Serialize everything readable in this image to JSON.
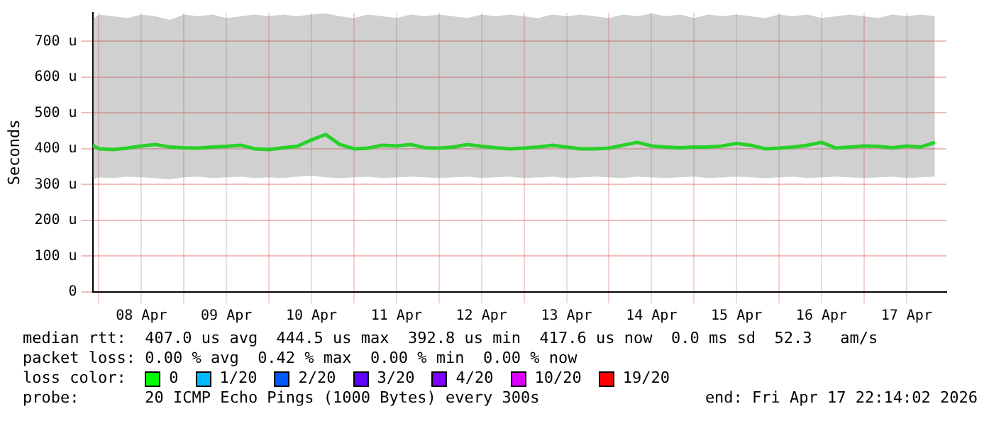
{
  "chart_data": {
    "type": "line",
    "ylabel": "Seconds",
    "legend_title": "loss color:",
    "legend": "bottom",
    "grid": true,
    "marker": "none",
    "x": [
      "2026-04-07T22:14",
      "2026-04-08T00:00",
      "2026-04-08T04:00",
      "2026-04-08T08:00",
      "2026-04-08T12:00",
      "2026-04-08T16:00",
      "2026-04-08T20:00",
      "2026-04-09T00:00",
      "2026-04-09T04:00",
      "2026-04-09T08:00",
      "2026-04-09T12:00",
      "2026-04-09T16:00",
      "2026-04-09T20:00",
      "2026-04-10T00:00",
      "2026-04-10T04:00",
      "2026-04-10T08:00",
      "2026-04-10T12:00",
      "2026-04-10T16:00",
      "2026-04-10T20:00",
      "2026-04-11T00:00",
      "2026-04-11T04:00",
      "2026-04-11T08:00",
      "2026-04-11T12:00",
      "2026-04-11T16:00",
      "2026-04-11T20:00",
      "2026-04-12T00:00",
      "2026-04-12T04:00",
      "2026-04-12T08:00",
      "2026-04-12T12:00",
      "2026-04-12T16:00",
      "2026-04-12T20:00",
      "2026-04-13T00:00",
      "2026-04-13T04:00",
      "2026-04-13T08:00",
      "2026-04-13T12:00",
      "2026-04-13T16:00",
      "2026-04-13T20:00",
      "2026-04-14T00:00",
      "2026-04-14T04:00",
      "2026-04-14T08:00",
      "2026-04-14T12:00",
      "2026-04-14T16:00",
      "2026-04-14T20:00",
      "2026-04-15T00:00",
      "2026-04-15T04:00",
      "2026-04-15T08:00",
      "2026-04-15T12:00",
      "2026-04-15T16:00",
      "2026-04-15T20:00",
      "2026-04-16T00:00",
      "2026-04-16T04:00",
      "2026-04-16T08:00",
      "2026-04-16T12:00",
      "2026-04-16T16:00",
      "2026-04-16T20:00",
      "2026-04-17T00:00",
      "2026-04-17T04:00",
      "2026-04-17T08:00",
      "2026-04-17T12:00",
      "2026-04-17T16:00",
      "2026-04-17T20:00"
    ],
    "xlim": [
      "2026-04-07T22:14",
      "2026-04-17T23:15"
    ],
    "xticks": [
      {
        "value": "2026-04-08T00:00",
        "label": null
      },
      {
        "value": "2026-04-08T12:00",
        "label": "08 Apr"
      },
      {
        "value": "2026-04-09T00:00",
        "label": null
      },
      {
        "value": "2026-04-09T12:00",
        "label": "09 Apr"
      },
      {
        "value": "2026-04-10T00:00",
        "label": null
      },
      {
        "value": "2026-04-10T12:00",
        "label": "10 Apr"
      },
      {
        "value": "2026-04-11T00:00",
        "label": null
      },
      {
        "value": "2026-04-11T12:00",
        "label": "11 Apr"
      },
      {
        "value": "2026-04-12T00:00",
        "label": null
      },
      {
        "value": "2026-04-12T12:00",
        "label": "12 Apr"
      },
      {
        "value": "2026-04-13T00:00",
        "label": null
      },
      {
        "value": "2026-04-13T12:00",
        "label": "13 Apr"
      },
      {
        "value": "2026-04-14T00:00",
        "label": null
      },
      {
        "value": "2026-04-14T12:00",
        "label": "14 Apr"
      },
      {
        "value": "2026-04-15T00:00",
        "label": null
      },
      {
        "value": "2026-04-15T12:00",
        "label": "15 Apr"
      },
      {
        "value": "2026-04-16T00:00",
        "label": null
      },
      {
        "value": "2026-04-16T12:00",
        "label": "16 Apr"
      },
      {
        "value": "2026-04-17T00:00",
        "label": null
      },
      {
        "value": "2026-04-17T12:00",
        "label": "17 Apr"
      }
    ],
    "ylim": [
      0,
      780
    ],
    "yticks": [
      0,
      {
        "value": 100,
        "label": "100 u"
      },
      {
        "value": 200,
        "label": "200 u"
      },
      {
        "value": 300,
        "label": "300 u"
      },
      {
        "value": 400,
        "label": "400 u"
      },
      {
        "value": 500,
        "label": "500 u"
      },
      {
        "value": 600,
        "label": "600 u"
      },
      {
        "value": 700,
        "label": "700 u"
      }
    ],
    "series": [
      {
        "name": "0",
        "color": "#00ff00",
        "values": [
          410,
          400,
          398,
          402,
          408,
          412,
          405,
          403,
          402,
          405,
          407,
          410,
          400,
          398,
          403,
          407,
          425,
          440,
          412,
          400,
          402,
          410,
          408,
          412,
          403,
          402,
          405,
          412,
          407,
          403,
          400,
          402,
          405,
          410,
          405,
          400,
          400,
          402,
          410,
          418,
          408,
          405,
          403,
          405,
          405,
          408,
          415,
          410,
          400,
          402,
          405,
          410,
          418,
          402,
          405,
          408,
          407,
          403,
          408,
          405,
          418
        ],
        "lower": [
          315,
          320,
          318,
          322,
          320,
          318,
          315,
          320,
          322,
          318,
          320,
          322,
          318,
          320,
          318,
          322,
          325,
          320,
          318,
          320,
          322,
          318,
          320,
          322,
          320,
          318,
          320,
          322,
          318,
          320,
          322,
          318,
          320,
          322,
          318,
          320,
          322,
          320,
          318,
          322,
          320,
          318,
          320,
          322,
          318,
          320,
          322,
          320,
          318,
          320,
          322,
          318,
          320,
          322,
          320,
          318,
          320,
          322,
          318,
          320,
          322
        ],
        "upper": [
          760,
          775,
          770,
          765,
          775,
          770,
          760,
          775,
          770,
          775,
          765,
          770,
          775,
          770,
          775,
          770,
          775,
          778,
          770,
          765,
          775,
          770,
          765,
          775,
          770,
          775,
          770,
          765,
          775,
          770,
          775,
          770,
          765,
          775,
          770,
          775,
          770,
          765,
          775,
          770,
          778,
          770,
          775,
          765,
          775,
          770,
          775,
          770,
          765,
          775,
          770,
          775,
          765,
          770,
          775,
          770,
          765,
          775,
          770,
          775,
          770
        ]
      },
      {
        "name": "1/20",
        "color": "#00b8ff",
        "values": [
          null,
          null,
          null,
          null,
          null,
          null,
          null,
          null,
          null,
          null,
          null,
          null,
          null,
          null,
          null,
          null,
          null,
          null,
          null,
          null,
          null,
          null,
          null,
          null,
          null,
          null,
          null,
          null,
          null,
          null,
          null,
          null,
          null,
          null,
          null,
          null,
          null,
          null,
          null,
          null,
          null,
          null,
          null,
          null,
          null,
          null,
          null,
          null,
          null,
          null,
          null,
          null,
          null,
          null,
          null,
          null,
          null,
          null,
          null,
          null,
          null
        ]
      },
      {
        "name": "2/20",
        "color": "#0059ff",
        "values": [
          null,
          null,
          null,
          null,
          null,
          null,
          null,
          null,
          null,
          null,
          null,
          null,
          null,
          null,
          null,
          null,
          null,
          null,
          null,
          null,
          null,
          null,
          null,
          null,
          null,
          null,
          null,
          null,
          null,
          null,
          null,
          null,
          null,
          null,
          null,
          null,
          null,
          null,
          null,
          null,
          null,
          null,
          null,
          null,
          null,
          null,
          null,
          null,
          null,
          null,
          null,
          null,
          null,
          null,
          null,
          null,
          null,
          null,
          null,
          null,
          null
        ]
      },
      {
        "name": "3/20",
        "color": "#5e00ff",
        "values": [
          null,
          null,
          null,
          null,
          null,
          null,
          null,
          null,
          null,
          null,
          null,
          null,
          null,
          null,
          null,
          null,
          null,
          null,
          null,
          null,
          null,
          null,
          null,
          null,
          null,
          null,
          null,
          null,
          null,
          null,
          null,
          null,
          null,
          null,
          null,
          null,
          null,
          null,
          null,
          null,
          null,
          null,
          null,
          null,
          null,
          null,
          null,
          null,
          null,
          null,
          null,
          null,
          null,
          null,
          null,
          null,
          null,
          null,
          null,
          null,
          null
        ]
      },
      {
        "name": "4/20",
        "color": "#7e00ff",
        "values": [
          null,
          null,
          null,
          null,
          null,
          null,
          null,
          null,
          null,
          null,
          null,
          null,
          null,
          null,
          null,
          null,
          null,
          null,
          null,
          null,
          null,
          null,
          null,
          null,
          null,
          null,
          null,
          null,
          null,
          null,
          null,
          null,
          null,
          null,
          null,
          null,
          null,
          null,
          null,
          null,
          null,
          null,
          null,
          null,
          null,
          null,
          null,
          null,
          null,
          null,
          null,
          null,
          null,
          null,
          null,
          null,
          null,
          null,
          null,
          null,
          null
        ]
      },
      {
        "name": "10/20",
        "color": "#dd00ff",
        "values": [
          null,
          null,
          null,
          null,
          null,
          null,
          null,
          null,
          null,
          null,
          null,
          null,
          null,
          null,
          null,
          null,
          null,
          null,
          null,
          null,
          null,
          null,
          null,
          null,
          null,
          null,
          null,
          null,
          null,
          null,
          null,
          null,
          null,
          null,
          null,
          null,
          null,
          null,
          null,
          null,
          null,
          null,
          null,
          null,
          null,
          null,
          null,
          null,
          null,
          null,
          null,
          null,
          null,
          null,
          null,
          null,
          null,
          null,
          null,
          null,
          null
        ]
      },
      {
        "name": "19/20",
        "color": "#ff0000",
        "values": [
          null,
          null,
          null,
          null,
          null,
          null,
          null,
          null,
          null,
          null,
          null,
          null,
          null,
          null,
          null,
          null,
          null,
          null,
          null,
          null,
          null,
          null,
          null,
          null,
          null,
          null,
          null,
          null,
          null,
          null,
          null,
          null,
          null,
          null,
          null,
          null,
          null,
          null,
          null,
          null,
          null,
          null,
          null,
          null,
          null,
          null,
          null,
          null,
          null,
          null,
          null,
          null,
          null,
          null,
          null,
          null,
          null,
          null,
          null,
          null,
          null
        ]
      }
    ],
    "annotations": [
      "median rtt:  407.0 us avg  444.5 us max  392.8 us min  417.6 us now  0.0 ms sd  52.3   am/s",
      "packet loss: 0.00 % avg  0.42 % max  0.00 % min  0.00 % now",
      "probe:       20 ICMP Echo Pings (1000 Bytes) every 300s",
      "end: Fri Apr 17 22:14:02 2026"
    ]
  }
}
